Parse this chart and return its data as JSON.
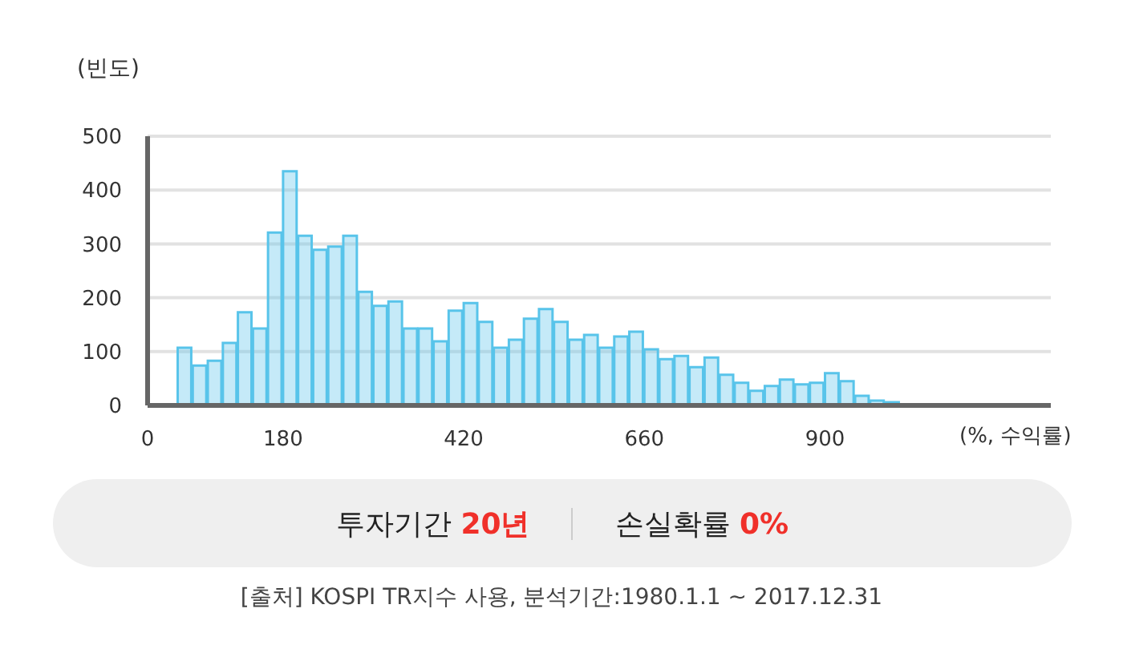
{
  "chart_data": {
    "type": "histogram",
    "ylabel": "(빈도)",
    "xlabel": "(%, 수익률)",
    "bins": [
      40,
      60,
      80,
      100,
      120,
      140,
      160,
      180,
      200,
      220,
      240,
      260,
      280,
      300,
      320,
      340,
      360,
      380,
      400,
      420,
      440,
      460,
      480,
      500,
      520,
      540,
      560,
      580,
      600,
      620,
      640,
      660,
      680,
      700,
      720,
      740,
      760,
      780,
      800,
      820,
      840,
      860,
      880,
      900,
      920,
      940,
      960,
      980,
      1000
    ],
    "values": [
      107,
      74,
      83,
      116,
      173,
      143,
      321,
      435,
      315,
      289,
      295,
      315,
      211,
      185,
      193,
      143,
      143,
      119,
      176,
      190,
      155,
      107,
      122,
      161,
      179,
      155,
      122,
      131,
      107,
      128,
      137,
      104,
      86,
      92,
      71,
      89,
      57,
      42,
      27,
      36,
      48,
      39,
      42,
      60,
      45,
      18,
      9,
      6
    ],
    "color": "#58c4ea",
    "xlim": [
      0,
      1200
    ],
    "xticks": [
      0,
      180,
      420,
      660,
      900
    ],
    "ylim": [
      0,
      500
    ],
    "yticks": [
      0,
      100,
      200,
      300,
      400,
      500
    ],
    "grid": "y",
    "annotations": [
      "투자기간 20년",
      "손실확률 0%",
      "[출처] KOSPI TR지수 사용, 분석기간:1980.1.1 ~ 2017.12.31"
    ]
  }
}
